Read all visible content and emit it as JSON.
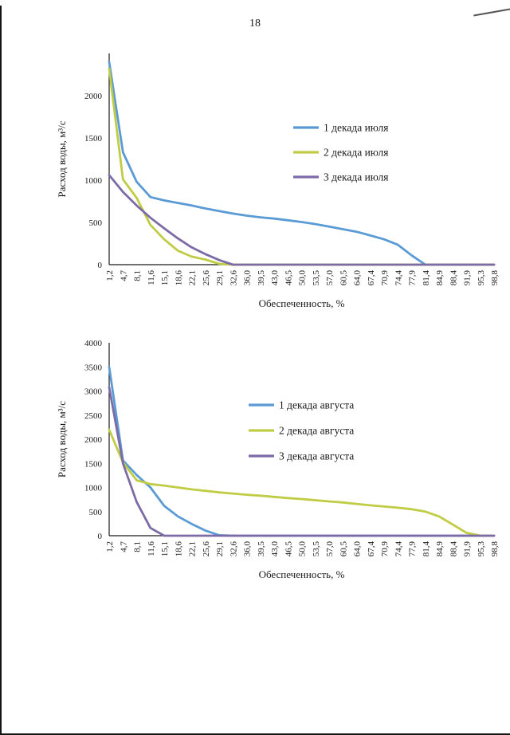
{
  "page": {
    "number": "18",
    "background": "#ffffff"
  },
  "chart_data": [
    {
      "type": "line",
      "title": "",
      "xlabel": "Обеспеченность, %",
      "ylabel": "Расход воды, м³/с",
      "ylim": [
        0,
        2500
      ],
      "yticks": [
        0,
        500,
        1000,
        1500,
        2000
      ],
      "grid": false,
      "legend_position": "inside-right",
      "categories": [
        "1,2",
        "4,7",
        "8,1",
        "11,6",
        "15,1",
        "18,6",
        "22,1",
        "25,6",
        "29,1",
        "32,6",
        "36,0",
        "39,5",
        "43,0",
        "46,5",
        "50,0",
        "53,5",
        "57,0",
        "60,5",
        "64,0",
        "67,4",
        "70,9",
        "74,4",
        "77,9",
        "81,4",
        "84,9",
        "88,4",
        "91,9",
        "95,3",
        "98,8"
      ],
      "series": [
        {
          "name": "1 декада июля",
          "color": "#5B9BD5",
          "values": [
            2400,
            1330,
            980,
            800,
            760,
            730,
            700,
            665,
            635,
            605,
            580,
            560,
            545,
            525,
            505,
            480,
            450,
            420,
            390,
            345,
            300,
            235,
            110,
            0,
            0,
            0,
            0,
            0,
            0
          ]
        },
        {
          "name": "2 декада июля",
          "color": "#BFCC44",
          "values": [
            2320,
            1010,
            790,
            470,
            300,
            165,
            95,
            60,
            10,
            0,
            0,
            0,
            0,
            0,
            0,
            0,
            0,
            0,
            0,
            0,
            0,
            0,
            0,
            0,
            0,
            0,
            0,
            0,
            0
          ]
        },
        {
          "name": "3 декада июля",
          "color": "#7D6BA8",
          "values": [
            1060,
            860,
            700,
            555,
            430,
            310,
            205,
            125,
            55,
            0,
            0,
            0,
            0,
            0,
            0,
            0,
            0,
            0,
            0,
            0,
            0,
            0,
            0,
            0,
            0,
            0,
            0,
            0,
            0
          ]
        }
      ]
    },
    {
      "type": "line",
      "title": "",
      "xlabel": "Обеспеченность, %",
      "ylabel": "Расход воды, м³/с",
      "ylim": [
        0,
        4000
      ],
      "yticks": [
        0,
        500,
        1000,
        1500,
        2000,
        2500,
        3000,
        3500,
        4000
      ],
      "grid": false,
      "legend_position": "inside-center",
      "categories": [
        "1,2",
        "4,7",
        "8,1",
        "11,6",
        "15,1",
        "18,6",
        "22,1",
        "25,6",
        "29,1",
        "32,6",
        "36,0",
        "39,5",
        "43,0",
        "46,5",
        "50,0",
        "53,5",
        "57,0",
        "60,5",
        "64,0",
        "67,4",
        "70,9",
        "74,4",
        "77,9",
        "81,4",
        "84,9",
        "88,4",
        "91,9",
        "95,3",
        "98,8"
      ],
      "series": [
        {
          "name": "1 декада августа",
          "color": "#5B9BD5",
          "values": [
            3500,
            1560,
            1260,
            1000,
            620,
            400,
            245,
            105,
            10,
            0,
            0,
            0,
            0,
            0,
            0,
            0,
            0,
            0,
            0,
            0,
            0,
            0,
            0,
            0,
            0,
            0,
            0,
            0,
            0
          ]
        },
        {
          "name": "2 декада августа",
          "color": "#BFCC44",
          "values": [
            2200,
            1520,
            1150,
            1070,
            1040,
            1000,
            960,
            930,
            900,
            875,
            850,
            830,
            805,
            780,
            760,
            735,
            710,
            690,
            660,
            630,
            605,
            580,
            550,
            500,
            400,
            230,
            60,
            0,
            0
          ]
        },
        {
          "name": "3 декада августа",
          "color": "#7D6BA8",
          "values": [
            3080,
            1500,
            700,
            160,
            0,
            0,
            0,
            0,
            0,
            0,
            0,
            0,
            0,
            0,
            0,
            0,
            0,
            0,
            0,
            0,
            0,
            0,
            0,
            0,
            0,
            0,
            0,
            0,
            0
          ]
        }
      ]
    }
  ]
}
